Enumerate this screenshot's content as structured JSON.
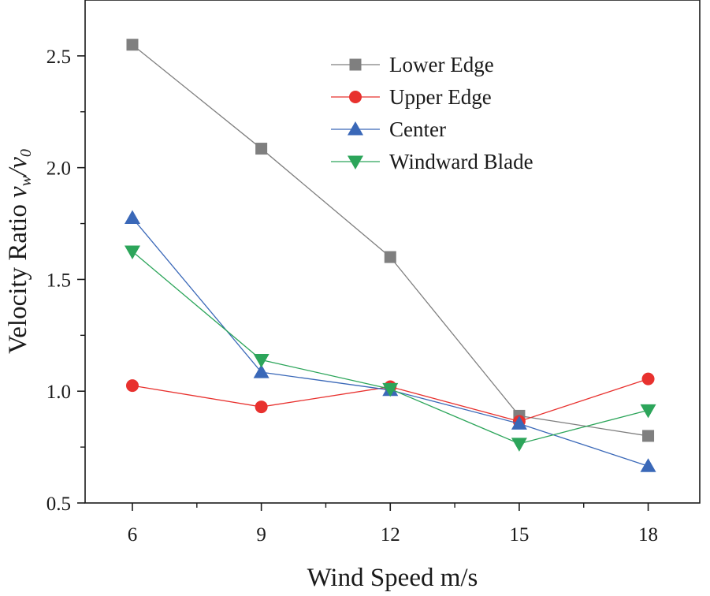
{
  "chart_data": {
    "type": "line",
    "title": "",
    "xlabel": "Wind Speed m/s",
    "ylabel": "Velocity Ratio",
    "ylabel_math": "v",
    "ylabel_sub_w": "w",
    "ylabel_slash": "/",
    "ylabel_sub_0": "0",
    "x": [
      6,
      9,
      12,
      15,
      18
    ],
    "x_tick_labels": [
      "6",
      "9",
      "12",
      "15",
      "18"
    ],
    "xlim": [
      4.9,
      19.2
    ],
    "ylim": [
      0.5,
      2.75
    ],
    "y_ticks": [
      0.5,
      1.0,
      1.5,
      2.0,
      2.5
    ],
    "y_tick_labels": [
      "0.5",
      "1.0",
      "1.5",
      "2.0",
      "2.5"
    ],
    "grid": false,
    "legend_position": "top-right",
    "series": [
      {
        "name": "Lower Edge",
        "marker": "square",
        "color": "#7f7f7f",
        "values": [
          2.55,
          2.085,
          1.6,
          0.89,
          0.8
        ]
      },
      {
        "name": "Upper Edge",
        "marker": "circle",
        "color": "#e8312e",
        "values": [
          1.025,
          0.93,
          1.02,
          0.865,
          1.055
        ]
      },
      {
        "name": "Center",
        "marker": "triangle-up",
        "color": "#3a68b8",
        "values": [
          1.775,
          1.085,
          1.005,
          0.855,
          0.665
        ]
      },
      {
        "name": "Windward Blade",
        "marker": "triangle-down",
        "color": "#2ca55a",
        "values": [
          1.625,
          1.14,
          1.01,
          0.765,
          0.915
        ]
      }
    ]
  }
}
